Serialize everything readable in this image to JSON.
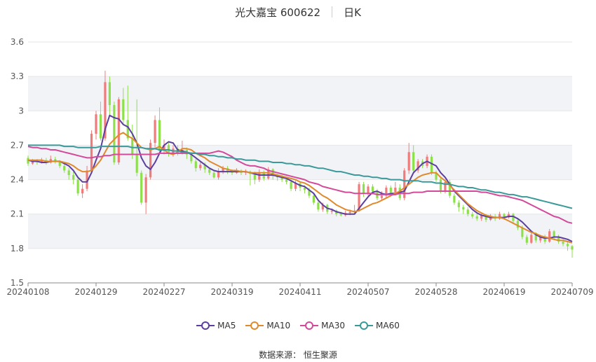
{
  "header": {
    "title": "光大嘉宝 600622",
    "period": "日K"
  },
  "source": "数据来源： 恒生聚源",
  "colors": {
    "up": "#f07b7b",
    "down": "#8de04b",
    "grid": "#e6e6e6",
    "band": "#f2f3f7",
    "MA5": "#5b3fa0",
    "MA10": "#e08a2e",
    "MA30": "#d44a9a",
    "MA60": "#3a9a9a"
  },
  "chart_data": {
    "type": "candlestick",
    "title": "光大嘉宝 600622 日K",
    "ylim": [
      1.5,
      3.6
    ],
    "yticks": [
      "3.6",
      "3.3",
      "3",
      "2.7",
      "2.4",
      "2.1",
      "1.8",
      "1.5"
    ],
    "ytick_values": [
      3.6,
      3.3,
      3.0,
      2.7,
      2.4,
      2.1,
      1.8,
      1.5
    ],
    "xticks": [
      "20240108",
      "20240129",
      "20240227",
      "20240319",
      "20240411",
      "20240507",
      "20240528",
      "20240619",
      "20240709"
    ],
    "xtick_index": [
      0,
      15,
      30,
      45,
      60,
      75,
      90,
      105,
      120
    ],
    "n_days": 121,
    "candles": [
      [
        2.59,
        2.54,
        2.61,
        2.52
      ],
      [
        2.54,
        2.56,
        2.58,
        2.53
      ],
      [
        2.56,
        2.55,
        2.58,
        2.53
      ],
      [
        2.55,
        2.57,
        2.59,
        2.54
      ],
      [
        2.57,
        2.55,
        2.59,
        2.53
      ],
      [
        2.55,
        2.58,
        2.61,
        2.54
      ],
      [
        2.58,
        2.56,
        2.6,
        2.54
      ],
      [
        2.56,
        2.52,
        2.57,
        2.5
      ],
      [
        2.52,
        2.48,
        2.54,
        2.46
      ],
      [
        2.48,
        2.44,
        2.5,
        2.4
      ],
      [
        2.44,
        2.4,
        2.47,
        2.36
      ],
      [
        2.4,
        2.28,
        2.42,
        2.26
      ],
      [
        2.28,
        2.32,
        2.36,
        2.24
      ],
      [
        2.32,
        2.48,
        2.52,
        2.3
      ],
      [
        2.48,
        2.8,
        2.83,
        2.45
      ],
      [
        2.8,
        2.97,
        3.0,
        2.75
      ],
      [
        2.97,
        2.76,
        3.08,
        2.74
      ],
      [
        2.76,
        3.25,
        3.35,
        2.74
      ],
      [
        3.25,
        3.05,
        3.3,
        2.96
      ],
      [
        3.05,
        2.55,
        3.08,
        2.53
      ],
      [
        2.55,
        3.1,
        3.12,
        2.53
      ],
      [
        3.1,
        2.92,
        3.2,
        2.88
      ],
      [
        2.92,
        2.76,
        3.22,
        2.74
      ],
      [
        2.76,
        2.62,
        2.88,
        2.58
      ],
      [
        2.62,
        2.46,
        3.1,
        2.43
      ],
      [
        2.46,
        2.2,
        2.48,
        2.18
      ],
      [
        2.2,
        2.42,
        2.45,
        2.1
      ],
      [
        2.42,
        2.72,
        2.75,
        2.4
      ],
      [
        2.72,
        2.92,
        2.96,
        2.68
      ],
      [
        2.92,
        2.65,
        3.03,
        2.62
      ],
      [
        2.65,
        2.7,
        2.75,
        2.62
      ],
      [
        2.7,
        2.63,
        2.72,
        2.6
      ],
      [
        2.63,
        2.67,
        2.7,
        2.6
      ],
      [
        2.67,
        2.64,
        2.7,
        2.61
      ],
      [
        2.64,
        2.66,
        2.74,
        2.62
      ],
      [
        2.66,
        2.62,
        2.68,
        2.58
      ],
      [
        2.62,
        2.56,
        2.64,
        2.54
      ],
      [
        2.56,
        2.5,
        2.58,
        2.47
      ],
      [
        2.5,
        2.53,
        2.55,
        2.48
      ],
      [
        2.53,
        2.49,
        2.55,
        2.46
      ],
      [
        2.49,
        2.46,
        2.5,
        2.44
      ],
      [
        2.46,
        2.42,
        2.48,
        2.41
      ],
      [
        2.42,
        2.47,
        2.5,
        2.4
      ],
      [
        2.47,
        2.5,
        2.52,
        2.45
      ],
      [
        2.5,
        2.47,
        2.52,
        2.45
      ],
      [
        2.47,
        2.46,
        2.49,
        2.44
      ],
      [
        2.46,
        2.48,
        2.5,
        2.45
      ],
      [
        2.48,
        2.46,
        2.49,
        2.44
      ],
      [
        2.46,
        2.47,
        2.49,
        2.44
      ],
      [
        2.47,
        2.45,
        2.48,
        2.35
      ],
      [
        2.45,
        2.4,
        2.47,
        2.36
      ],
      [
        2.4,
        2.46,
        2.49,
        2.38
      ],
      [
        2.46,
        2.41,
        2.48,
        2.39
      ],
      [
        2.41,
        2.49,
        2.51,
        2.4
      ],
      [
        2.49,
        2.43,
        2.5,
        2.4
      ],
      [
        2.43,
        2.42,
        2.45,
        2.39
      ],
      [
        2.42,
        2.4,
        2.44,
        2.38
      ],
      [
        2.4,
        2.38,
        2.42,
        2.36
      ],
      [
        2.38,
        2.32,
        2.4,
        2.3
      ],
      [
        2.32,
        2.37,
        2.39,
        2.3
      ],
      [
        2.37,
        2.33,
        2.38,
        2.3
      ],
      [
        2.33,
        2.31,
        2.35,
        2.28
      ],
      [
        2.31,
        2.26,
        2.33,
        2.24
      ],
      [
        2.26,
        2.2,
        2.28,
        2.18
      ],
      [
        2.2,
        2.14,
        2.22,
        2.12
      ],
      [
        2.14,
        2.18,
        2.2,
        2.12
      ],
      [
        2.18,
        2.12,
        2.19,
        2.1
      ],
      [
        2.12,
        2.13,
        2.15,
        2.1
      ],
      [
        2.13,
        2.1,
        2.14,
        2.08
      ],
      [
        2.1,
        2.09,
        2.12,
        2.08
      ],
      [
        2.09,
        2.11,
        2.13,
        2.08
      ],
      [
        2.11,
        2.12,
        2.14,
        2.09
      ],
      [
        2.12,
        2.13,
        2.18,
        2.1
      ],
      [
        2.13,
        2.36,
        2.38,
        2.12
      ],
      [
        2.36,
        2.28,
        2.38,
        2.25
      ],
      [
        2.28,
        2.34,
        2.36,
        2.26
      ],
      [
        2.34,
        2.3,
        2.36,
        2.27
      ],
      [
        2.3,
        2.24,
        2.32,
        2.22
      ],
      [
        2.24,
        2.26,
        2.3,
        2.22
      ],
      [
        2.26,
        2.33,
        2.35,
        2.24
      ],
      [
        2.33,
        2.29,
        2.35,
        2.26
      ],
      [
        2.29,
        2.33,
        2.38,
        2.28
      ],
      [
        2.33,
        2.24,
        2.36,
        2.22
      ],
      [
        2.24,
        2.48,
        2.5,
        2.22
      ],
      [
        2.48,
        2.64,
        2.72,
        2.45
      ],
      [
        2.64,
        2.48,
        2.7,
        2.46
      ],
      [
        2.48,
        2.56,
        2.58,
        2.46
      ],
      [
        2.56,
        2.52,
        2.58,
        2.5
      ],
      [
        2.52,
        2.6,
        2.62,
        2.5
      ],
      [
        2.6,
        2.46,
        2.62,
        2.44
      ],
      [
        2.46,
        2.4,
        2.48,
        2.38
      ],
      [
        2.4,
        2.3,
        2.42,
        2.28
      ],
      [
        2.3,
        2.38,
        2.4,
        2.28
      ],
      [
        2.38,
        2.26,
        2.4,
        2.24
      ],
      [
        2.26,
        2.2,
        2.28,
        2.18
      ],
      [
        2.2,
        2.16,
        2.22,
        2.12
      ],
      [
        2.16,
        2.14,
        2.18,
        2.1
      ],
      [
        2.14,
        2.1,
        2.16,
        2.08
      ],
      [
        2.1,
        2.08,
        2.12,
        2.06
      ],
      [
        2.08,
        2.06,
        2.1,
        2.04
      ],
      [
        2.06,
        2.09,
        2.11,
        2.04
      ],
      [
        2.09,
        2.05,
        2.1,
        2.03
      ],
      [
        2.05,
        2.08,
        2.1,
        2.04
      ],
      [
        2.08,
        2.06,
        2.1,
        2.04
      ],
      [
        2.06,
        2.1,
        2.12,
        2.05
      ],
      [
        2.1,
        2.07,
        2.11,
        2.05
      ],
      [
        2.07,
        2.1,
        2.12,
        2.06
      ],
      [
        2.1,
        2.04,
        2.11,
        2.02
      ],
      [
        2.04,
        1.98,
        2.06,
        1.96
      ],
      [
        1.98,
        1.9,
        2.0,
        1.88
      ],
      [
        1.9,
        1.85,
        1.92,
        1.83
      ],
      [
        1.85,
        1.92,
        1.95,
        1.84
      ],
      [
        1.92,
        1.87,
        1.94,
        1.85
      ],
      [
        1.87,
        1.9,
        1.92,
        1.85
      ],
      [
        1.9,
        1.86,
        1.92,
        1.84
      ],
      [
        1.86,
        1.95,
        1.97,
        1.85
      ],
      [
        1.95,
        1.9,
        1.96,
        1.88
      ],
      [
        1.9,
        1.86,
        1.92,
        1.84
      ],
      [
        1.86,
        1.84,
        1.88,
        1.82
      ],
      [
        1.84,
        1.82,
        1.86,
        1.78
      ],
      [
        1.82,
        1.79,
        1.83,
        1.72
      ]
    ],
    "series": [
      {
        "name": "MA5",
        "values": [
          2.57,
          2.56,
          2.56,
          2.55,
          2.55,
          2.56,
          2.56,
          2.56,
          2.54,
          2.52,
          2.48,
          2.42,
          2.38,
          2.38,
          2.46,
          2.57,
          2.67,
          2.84,
          2.96,
          2.94,
          2.93,
          2.88,
          2.86,
          2.8,
          2.72,
          2.59,
          2.52,
          2.49,
          2.55,
          2.63,
          2.7,
          2.73,
          2.72,
          2.66,
          2.65,
          2.64,
          2.62,
          2.59,
          2.56,
          2.53,
          2.5,
          2.48,
          2.47,
          2.47,
          2.47,
          2.47,
          2.47,
          2.47,
          2.47,
          2.46,
          2.45,
          2.44,
          2.44,
          2.44,
          2.44,
          2.43,
          2.42,
          2.41,
          2.39,
          2.37,
          2.35,
          2.34,
          2.31,
          2.28,
          2.22,
          2.18,
          2.15,
          2.14,
          2.12,
          2.11,
          2.1,
          2.1,
          2.1,
          2.15,
          2.2,
          2.25,
          2.29,
          2.3,
          2.28,
          2.27,
          2.28,
          2.28,
          2.29,
          2.3,
          2.38,
          2.46,
          2.5,
          2.54,
          2.56,
          2.54,
          2.52,
          2.46,
          2.42,
          2.36,
          2.3,
          2.26,
          2.22,
          2.18,
          2.14,
          2.11,
          2.09,
          2.08,
          2.07,
          2.07,
          2.07,
          2.07,
          2.08,
          2.08,
          2.06,
          2.03,
          1.99,
          1.95,
          1.92,
          1.9,
          1.89,
          1.89,
          1.9,
          1.9,
          1.89,
          1.88,
          1.86
        ]
      },
      {
        "name": "MA10",
        "values": [
          2.57,
          2.57,
          2.57,
          2.57,
          2.56,
          2.56,
          2.56,
          2.56,
          2.55,
          2.54,
          2.52,
          2.49,
          2.47,
          2.47,
          2.48,
          2.52,
          2.57,
          2.64,
          2.71,
          2.75,
          2.79,
          2.81,
          2.78,
          2.76,
          2.72,
          2.68,
          2.67,
          2.66,
          2.67,
          2.69,
          2.66,
          2.63,
          2.62,
          2.64,
          2.67,
          2.67,
          2.66,
          2.63,
          2.61,
          2.59,
          2.56,
          2.54,
          2.52,
          2.5,
          2.49,
          2.48,
          2.48,
          2.47,
          2.47,
          2.46,
          2.46,
          2.46,
          2.46,
          2.46,
          2.45,
          2.44,
          2.43,
          2.42,
          2.41,
          2.4,
          2.38,
          2.37,
          2.35,
          2.32,
          2.29,
          2.26,
          2.24,
          2.21,
          2.18,
          2.16,
          2.14,
          2.13,
          2.12,
          2.13,
          2.15,
          2.17,
          2.19,
          2.2,
          2.22,
          2.24,
          2.26,
          2.28,
          2.3,
          2.33,
          2.36,
          2.39,
          2.42,
          2.44,
          2.45,
          2.46,
          2.46,
          2.42,
          2.39,
          2.35,
          2.31,
          2.27,
          2.23,
          2.19,
          2.16,
          2.13,
          2.11,
          2.09,
          2.08,
          2.07,
          2.07,
          2.06,
          2.04,
          2.02,
          2.0,
          1.98,
          1.96,
          1.94,
          1.93,
          1.91,
          1.9,
          1.89,
          1.88,
          1.87,
          1.87,
          1.86,
          1.85
        ]
      },
      {
        "name": "MA30",
        "values": [
          2.69,
          2.68,
          2.68,
          2.67,
          2.67,
          2.66,
          2.66,
          2.65,
          2.64,
          2.63,
          2.62,
          2.61,
          2.6,
          2.59,
          2.59,
          2.6,
          2.6,
          2.61,
          2.61,
          2.62,
          2.62,
          2.62,
          2.62,
          2.62,
          2.62,
          2.62,
          2.62,
          2.62,
          2.62,
          2.63,
          2.63,
          2.63,
          2.63,
          2.63,
          2.63,
          2.63,
          2.63,
          2.63,
          2.63,
          2.63,
          2.63,
          2.64,
          2.65,
          2.64,
          2.62,
          2.6,
          2.57,
          2.55,
          2.53,
          2.52,
          2.52,
          2.51,
          2.5,
          2.48,
          2.47,
          2.46,
          2.45,
          2.44,
          2.43,
          2.42,
          2.41,
          2.4,
          2.38,
          2.37,
          2.36,
          2.34,
          2.33,
          2.32,
          2.31,
          2.3,
          2.29,
          2.29,
          2.28,
          2.28,
          2.28,
          2.28,
          2.28,
          2.27,
          2.27,
          2.27,
          2.27,
          2.27,
          2.28,
          2.28,
          2.28,
          2.29,
          2.29,
          2.29,
          2.3,
          2.3,
          2.3,
          2.3,
          2.3,
          2.3,
          2.3,
          2.3,
          2.3,
          2.3,
          2.3,
          2.3,
          2.29,
          2.29,
          2.28,
          2.27,
          2.26,
          2.26,
          2.25,
          2.24,
          2.23,
          2.22,
          2.2,
          2.18,
          2.16,
          2.14,
          2.12,
          2.1,
          2.08,
          2.07,
          2.05,
          2.03,
          2.02
        ]
      },
      {
        "name": "MA60",
        "values": [
          2.7,
          2.7,
          2.7,
          2.7,
          2.7,
          2.7,
          2.7,
          2.7,
          2.69,
          2.69,
          2.69,
          2.68,
          2.68,
          2.68,
          2.68,
          2.68,
          2.69,
          2.69,
          2.69,
          2.69,
          2.69,
          2.69,
          2.69,
          2.68,
          2.68,
          2.68,
          2.67,
          2.67,
          2.67,
          2.66,
          2.66,
          2.66,
          2.65,
          2.65,
          2.64,
          2.64,
          2.63,
          2.63,
          2.62,
          2.62,
          2.61,
          2.61,
          2.6,
          2.6,
          2.59,
          2.59,
          2.58,
          2.58,
          2.57,
          2.57,
          2.57,
          2.56,
          2.56,
          2.56,
          2.55,
          2.55,
          2.55,
          2.54,
          2.54,
          2.53,
          2.53,
          2.52,
          2.52,
          2.51,
          2.5,
          2.5,
          2.49,
          2.48,
          2.47,
          2.47,
          2.46,
          2.45,
          2.44,
          2.44,
          2.43,
          2.43,
          2.42,
          2.42,
          2.41,
          2.41,
          2.4,
          2.4,
          2.4,
          2.39,
          2.39,
          2.39,
          2.39,
          2.38,
          2.38,
          2.38,
          2.37,
          2.37,
          2.36,
          2.36,
          2.35,
          2.34,
          2.34,
          2.33,
          2.33,
          2.32,
          2.31,
          2.31,
          2.3,
          2.29,
          2.29,
          2.28,
          2.27,
          2.27,
          2.26,
          2.25,
          2.25,
          2.24,
          2.23,
          2.22,
          2.21,
          2.2,
          2.19,
          2.18,
          2.17,
          2.16,
          2.15
        ]
      }
    ]
  }
}
